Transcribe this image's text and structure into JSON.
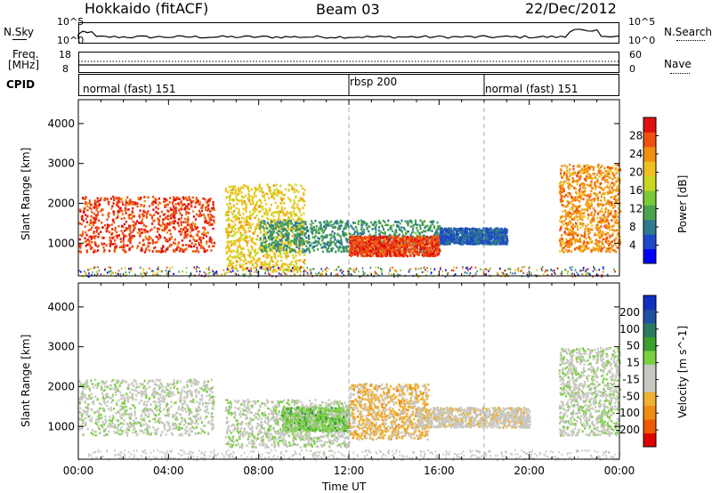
{
  "header": {
    "station": "Hokkaido (fitACF)",
    "beam": "Beam 03",
    "date": "22/Dec/2012"
  },
  "top_panels": {
    "nsky": {
      "label": "N.Sky",
      "ytick_top": "10^5",
      "ytick_bottom": "10^0"
    },
    "nsearch": {
      "label": "N.Search",
      "ytick_top": "10^5",
      "ytick_bottom": "10^0"
    },
    "freq": {
      "label_line1": "Freq.",
      "label_line2": "[MHz]",
      "ytick_top": "18",
      "ytick_bottom": "8"
    },
    "nave": {
      "label": "Nave",
      "ytick_top": "60",
      "ytick_bottom": "0"
    },
    "cpid": {
      "label": "CPID",
      "segments": [
        {
          "label": "normal (fast) 151",
          "start": 0,
          "end": 12
        },
        {
          "label": "rbsp 200",
          "start": 12,
          "end": 18
        },
        {
          "label": "normal (fast) 151",
          "start": 18,
          "end": 24
        }
      ]
    }
  },
  "chart_data": [
    {
      "type": "heatmap",
      "title": "",
      "xlabel": "",
      "ylabel": "Slant Range [km]",
      "xlim": [
        0,
        24
      ],
      "ylim": [
        180,
        4600
      ],
      "yticks": [
        1000,
        2000,
        3000,
        4000
      ],
      "colorbar": {
        "label": "Power [dB]",
        "range": [
          0,
          32
        ],
        "ticks": [
          "4",
          "8",
          "12",
          "16",
          "20",
          "24",
          "28"
        ],
        "colors": [
          "#0000ff",
          "#1f47c8",
          "#2f7a8f",
          "#4aa34f",
          "#7ac93a",
          "#c8d820",
          "#f0c020",
          "#f09010",
          "#f05010",
          "#e01010"
        ]
      },
      "scatter_regions": [
        {
          "t0": 0,
          "t1": 6,
          "r0": 800,
          "r1": 2200,
          "value": 28
        },
        {
          "t0": 6.5,
          "t1": 10,
          "r0": 300,
          "r1": 2500,
          "value": 20
        },
        {
          "t0": 8,
          "t1": 16,
          "r0": 800,
          "r1": 1600,
          "value": 10
        },
        {
          "t0": 12,
          "t1": 16,
          "r0": 700,
          "r1": 1200,
          "value": 28
        },
        {
          "t0": 16,
          "t1": 19,
          "r0": 1000,
          "r1": 1400,
          "value": 6
        },
        {
          "t0": 21.3,
          "t1": 24,
          "r0": 800,
          "r1": 3000,
          "value": 24
        }
      ]
    },
    {
      "type": "heatmap",
      "title": "",
      "xlabel": "Time UT",
      "ylabel": "Slant Range [km]",
      "xlim": [
        0,
        24
      ],
      "ylim": [
        180,
        4600
      ],
      "yticks": [
        1000,
        2000,
        3000,
        4000
      ],
      "xticks": [
        "00:00",
        "04:00",
        "08:00",
        "12:00",
        "16:00",
        "20:00",
        "00:00"
      ],
      "colorbar": {
        "label": "Velocity [m s^-1]",
        "range": [
          -250,
          250
        ],
        "ticks": [
          "200",
          "100",
          "50",
          "15",
          "-15",
          "-50",
          "-100",
          "-200"
        ],
        "colors": [
          "#e00000",
          "#f05a00",
          "#f08c10",
          "#f0b030",
          "#c8c8c0",
          "#c8c8c0",
          "#7ad040",
          "#3aa030",
          "#2a7a60",
          "#2050a0",
          "#1030c0"
        ]
      },
      "scatter_regions": [
        {
          "t0": 0,
          "t1": 6,
          "r0": 800,
          "r1": 2200,
          "value": 0
        },
        {
          "t0": 6.5,
          "t1": 12,
          "r0": 500,
          "r1": 1700,
          "value": 0
        },
        {
          "t0": 9,
          "t1": 12,
          "r0": 900,
          "r1": 1500,
          "value": 40
        },
        {
          "t0": 12,
          "t1": 15.5,
          "r0": 700,
          "r1": 2100,
          "value": -80
        },
        {
          "t0": 15,
          "t1": 20,
          "r0": 1000,
          "r1": 1500,
          "value": -40
        },
        {
          "t0": 21.3,
          "t1": 24,
          "r0": 800,
          "r1": 3000,
          "value": 0
        }
      ]
    }
  ]
}
